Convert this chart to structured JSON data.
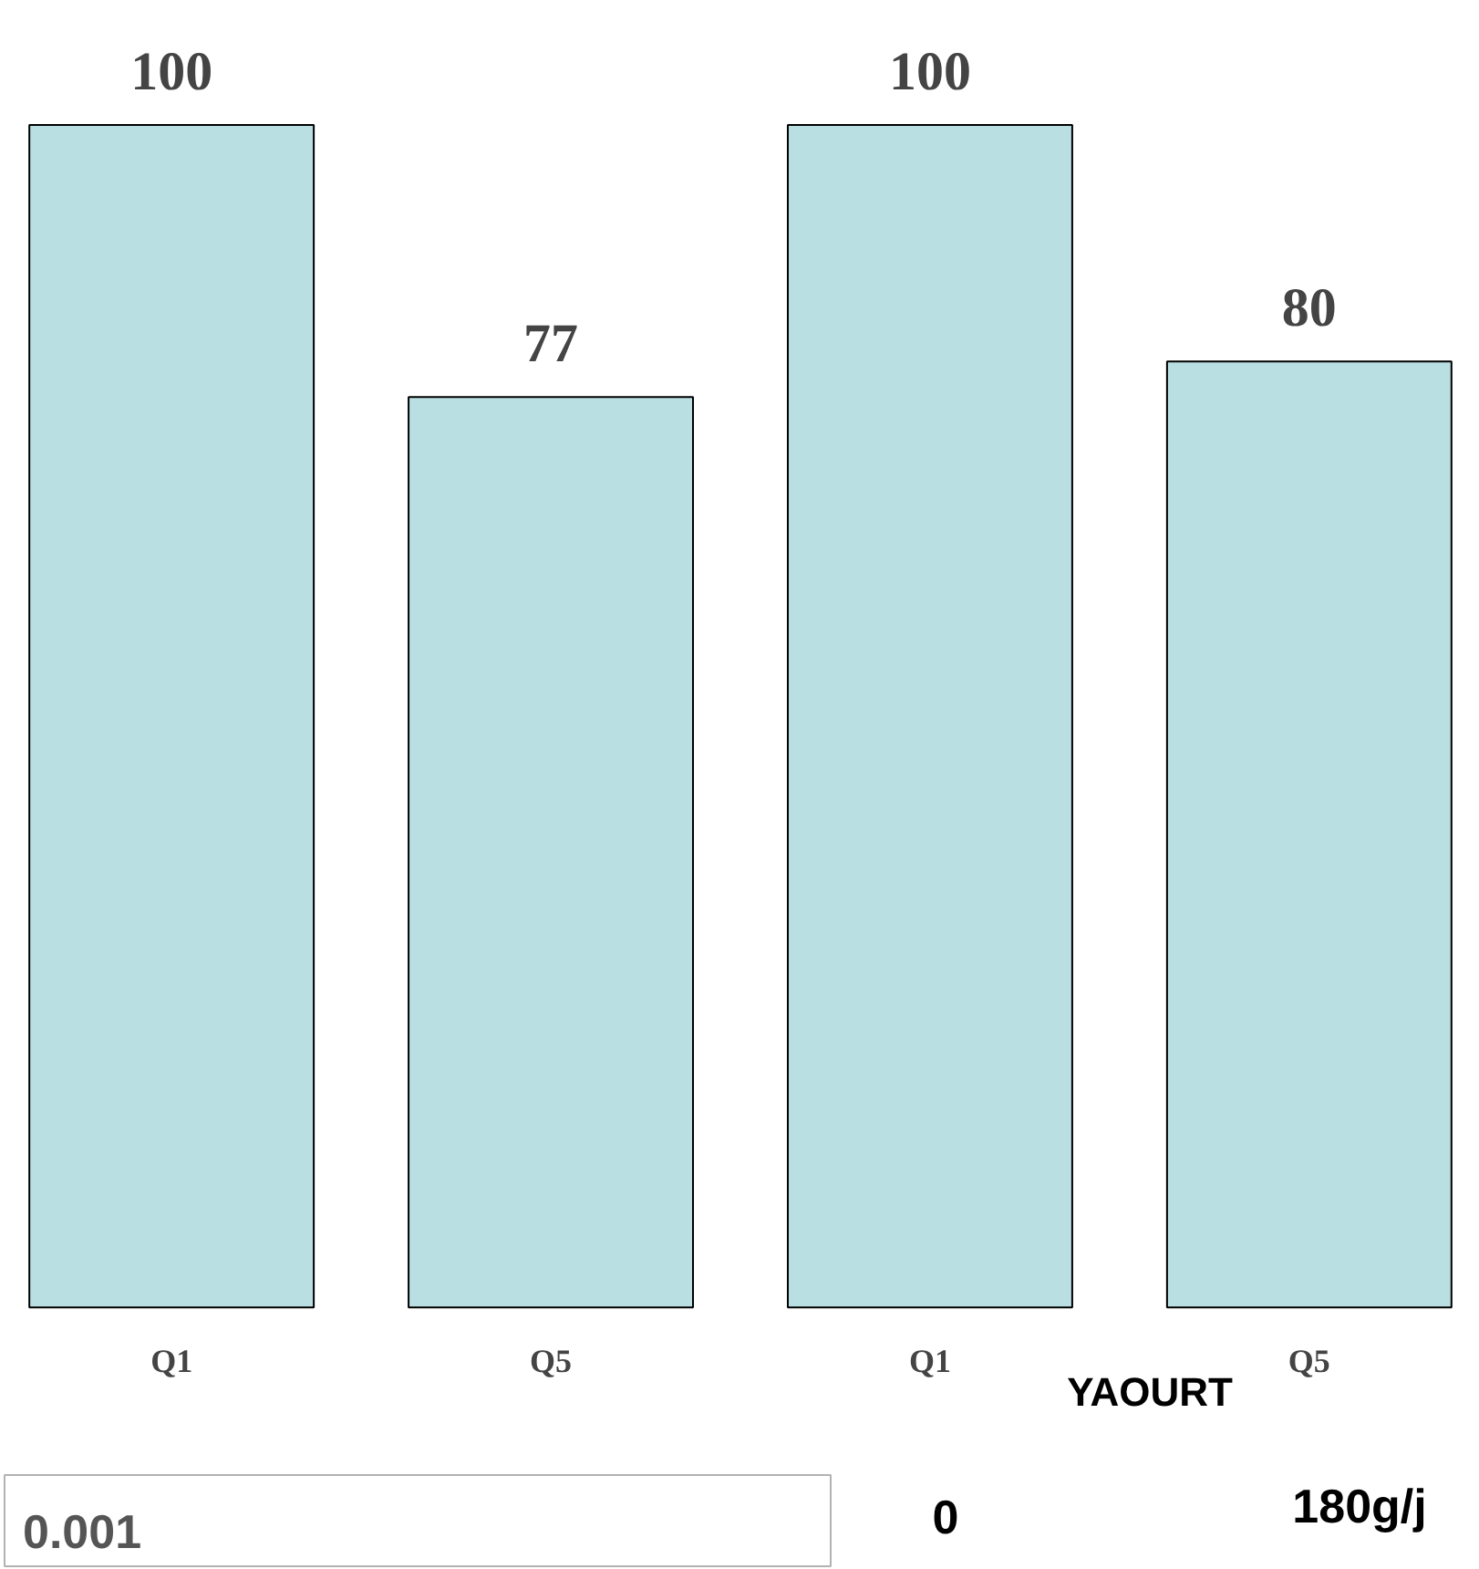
{
  "chart_data": {
    "type": "bar",
    "categories": [
      "Q1",
      "Q5",
      "Q1",
      "Q5"
    ],
    "values": [
      100,
      77,
      100,
      80
    ],
    "color": "#b9dfe2",
    "data_labels": true,
    "annotations": [
      "YAOURT",
      "0",
      "180g/j",
      "0.001"
    ]
  }
}
